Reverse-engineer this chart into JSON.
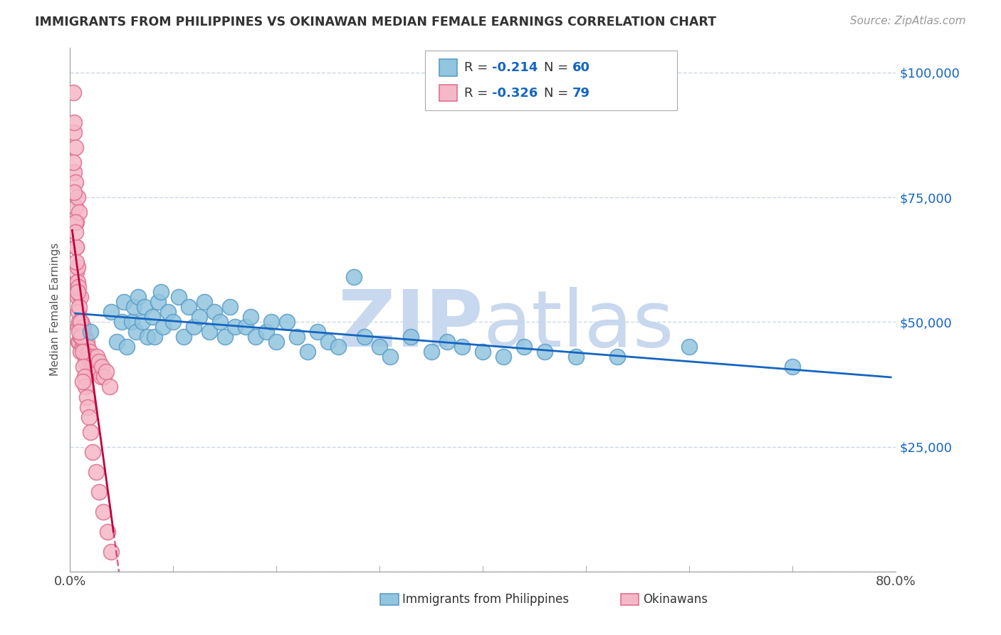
{
  "title": "IMMIGRANTS FROM PHILIPPINES VS OKINAWAN MEDIAN FEMALE EARNINGS CORRELATION CHART",
  "source": "Source: ZipAtlas.com",
  "ylabel": "Median Female Earnings",
  "xlim": [
    0,
    0.8
  ],
  "ylim": [
    0,
    105000
  ],
  "xticks": [
    0.0,
    0.1,
    0.2,
    0.3,
    0.4,
    0.5,
    0.6,
    0.7,
    0.8
  ],
  "xticklabels": [
    "0.0%",
    "",
    "",
    "",
    "",
    "",
    "",
    "",
    "80.0%"
  ],
  "ytick_values": [
    0,
    25000,
    50000,
    75000,
    100000
  ],
  "ytick_labels": [
    "",
    "$25,000",
    "$50,000",
    "$75,000",
    "$100,000"
  ],
  "blue_R": -0.214,
  "blue_N": 60,
  "pink_R": -0.326,
  "pink_N": 79,
  "blue_dot_color": "#92c5de",
  "blue_dot_edge": "#5b9ec9",
  "pink_dot_color": "#f5b8c8",
  "pink_dot_edge": "#e07090",
  "trend_blue": "#1565c0",
  "trend_pink": "#c0003c",
  "watermark_color": "#c8d8ee",
  "legend_color": "#1565c0",
  "background": "#ffffff",
  "grid_color": "#c8d8e8",
  "blue_scatter_x": [
    0.02,
    0.04,
    0.045,
    0.05,
    0.052,
    0.055,
    0.06,
    0.062,
    0.064,
    0.066,
    0.07,
    0.072,
    0.075,
    0.08,
    0.082,
    0.085,
    0.088,
    0.09,
    0.095,
    0.1,
    0.105,
    0.11,
    0.115,
    0.12,
    0.125,
    0.13,
    0.135,
    0.14,
    0.145,
    0.15,
    0.155,
    0.16,
    0.17,
    0.175,
    0.18,
    0.19,
    0.195,
    0.2,
    0.21,
    0.22,
    0.23,
    0.24,
    0.25,
    0.26,
    0.275,
    0.285,
    0.3,
    0.31,
    0.33,
    0.35,
    0.365,
    0.38,
    0.4,
    0.42,
    0.44,
    0.46,
    0.49,
    0.53,
    0.6,
    0.7
  ],
  "blue_scatter_y": [
    48000,
    52000,
    46000,
    50000,
    54000,
    45000,
    50000,
    53000,
    48000,
    55000,
    50000,
    53000,
    47000,
    51000,
    47000,
    54000,
    56000,
    49000,
    52000,
    50000,
    55000,
    47000,
    53000,
    49000,
    51000,
    54000,
    48000,
    52000,
    50000,
    47000,
    53000,
    49000,
    49000,
    51000,
    47000,
    48000,
    50000,
    46000,
    50000,
    47000,
    44000,
    48000,
    46000,
    45000,
    59000,
    47000,
    45000,
    43000,
    47000,
    44000,
    46000,
    45000,
    44000,
    43000,
    45000,
    44000,
    43000,
    43000,
    45000,
    41000
  ],
  "pink_scatter_x": [
    0.003,
    0.004,
    0.004,
    0.005,
    0.005,
    0.005,
    0.006,
    0.006,
    0.006,
    0.007,
    0.007,
    0.007,
    0.008,
    0.008,
    0.008,
    0.009,
    0.009,
    0.009,
    0.01,
    0.01,
    0.01,
    0.011,
    0.011,
    0.012,
    0.012,
    0.013,
    0.013,
    0.014,
    0.014,
    0.015,
    0.015,
    0.016,
    0.016,
    0.017,
    0.018,
    0.019,
    0.02,
    0.021,
    0.022,
    0.023,
    0.024,
    0.025,
    0.026,
    0.027,
    0.028,
    0.03,
    0.031,
    0.033,
    0.035,
    0.038,
    0.003,
    0.004,
    0.005,
    0.006,
    0.007,
    0.008,
    0.009,
    0.01,
    0.011,
    0.012,
    0.013,
    0.014,
    0.015,
    0.016,
    0.017,
    0.018,
    0.02,
    0.022,
    0.025,
    0.028,
    0.032,
    0.036,
    0.04,
    0.004,
    0.005,
    0.006,
    0.007,
    0.009,
    0.012
  ],
  "pink_scatter_y": [
    96000,
    88000,
    80000,
    78000,
    73000,
    85000,
    70000,
    65000,
    60000,
    58000,
    55000,
    75000,
    52000,
    49000,
    46000,
    50000,
    46000,
    72000,
    47000,
    44000,
    55000,
    50000,
    47000,
    48000,
    45000,
    49000,
    46000,
    47000,
    44000,
    45000,
    42000,
    46000,
    43000,
    45000,
    43000,
    44000,
    42000,
    43000,
    41000,
    42000,
    40000,
    41000,
    43000,
    40000,
    42000,
    39000,
    41000,
    39000,
    40000,
    37000,
    82000,
    76000,
    70000,
    65000,
    61000,
    57000,
    53000,
    50000,
    47000,
    44000,
    41000,
    39000,
    37000,
    35000,
    33000,
    31000,
    28000,
    24000,
    20000,
    16000,
    12000,
    8000,
    4000,
    90000,
    68000,
    62000,
    56000,
    48000,
    38000
  ],
  "blue_trend_x0": 0.005,
  "blue_trend_x1": 0.795,
  "pink_trend_x_solid_start": 0.002,
  "pink_trend_x_solid_end": 0.042,
  "pink_trend_x_dash_start": 0.042,
  "pink_trend_x_dash_end": 0.075
}
